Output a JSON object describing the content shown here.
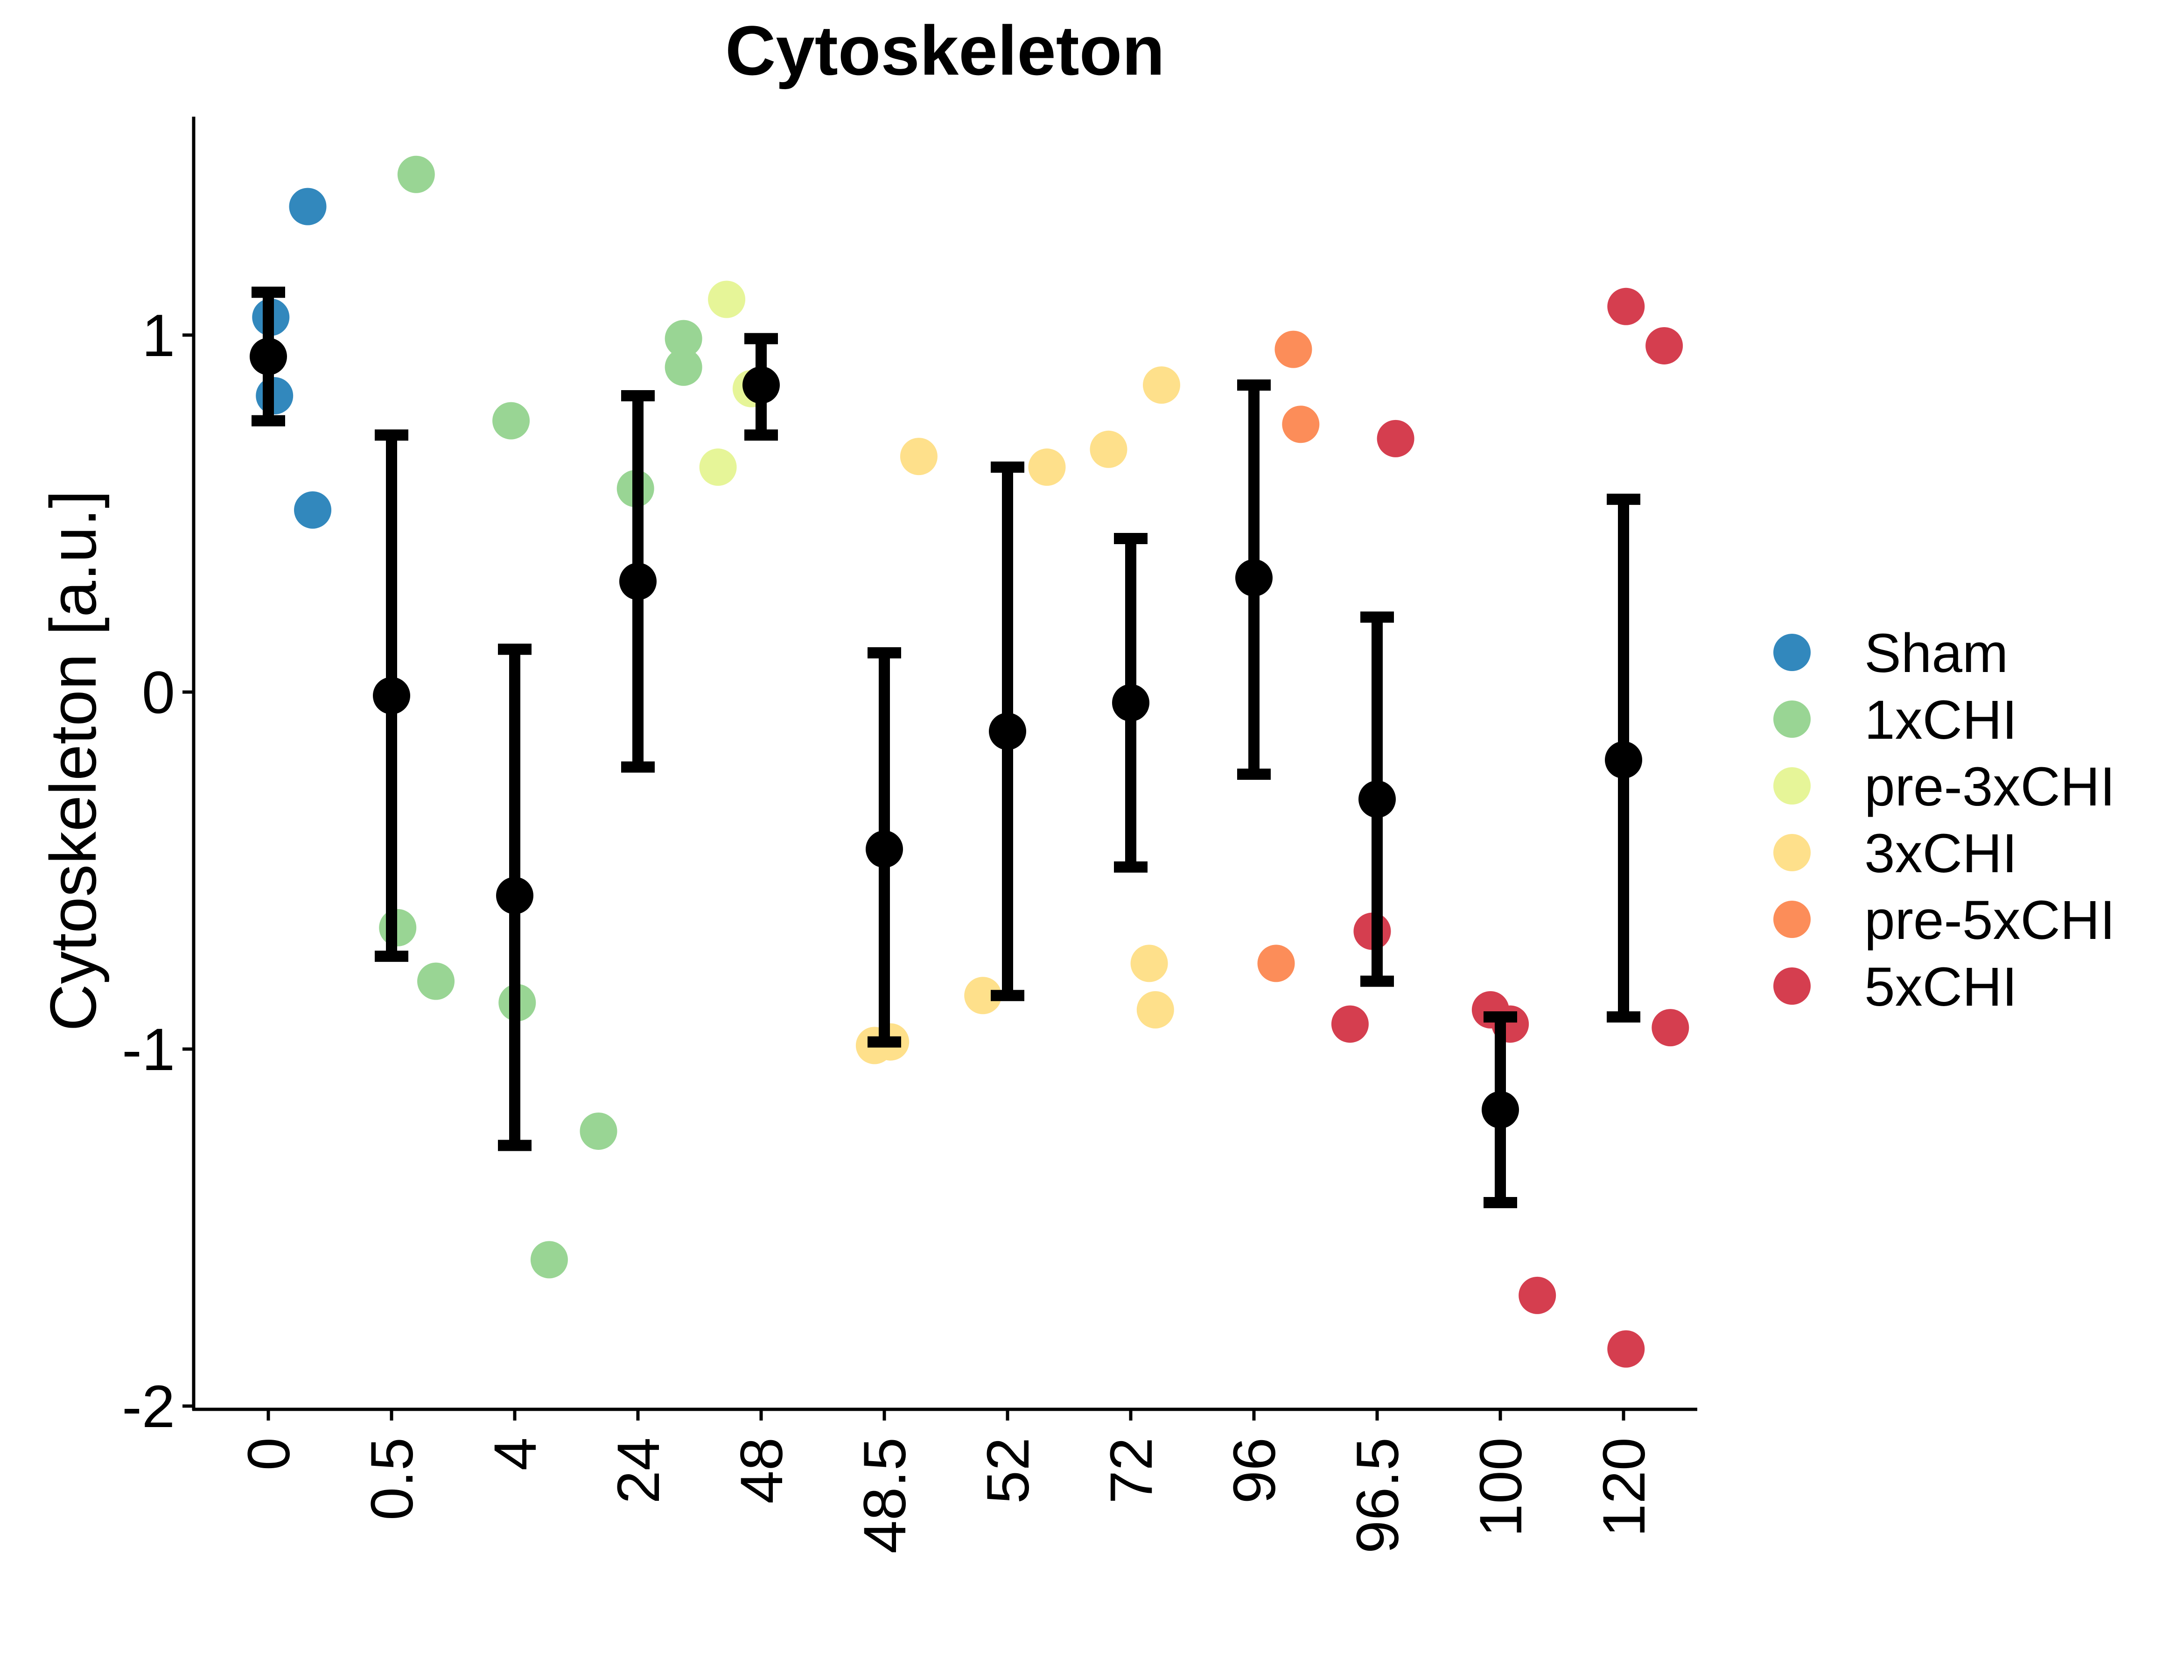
{
  "chart_data": {
    "type": "scatter",
    "title": "Cytoskeleton",
    "xlabel": "",
    "ylabel": "Cytoskeleton [a.u.]",
    "ylim": [
      -2.0,
      1.62
    ],
    "yticks": [
      -2,
      -1,
      0,
      1
    ],
    "ytick_labels": [
      "-2",
      "-1",
      "0",
      "1"
    ],
    "categories": [
      "0",
      "0.5",
      "4",
      "24",
      "48",
      "48.5",
      "52",
      "72",
      "96",
      "96.5",
      "100",
      "120"
    ],
    "legend_position": "right",
    "grid": false,
    "groups": [
      {
        "name": "Sham",
        "color": "#3288bd"
      },
      {
        "name": "1xCHI",
        "color": "#99d594"
      },
      {
        "name": "pre-3xCHI",
        "color": "#e6f598"
      },
      {
        "name": "3xCHI",
        "color": "#fee08b"
      },
      {
        "name": "pre-5xCHI",
        "color": "#fc8d59"
      },
      {
        "name": "5xCHI",
        "color": "#d53e4f"
      }
    ],
    "points": [
      {
        "category": "0",
        "offset": 0.32,
        "y": 1.36,
        "group": "Sham"
      },
      {
        "category": "0",
        "offset": 0.02,
        "y": 1.05,
        "group": "Sham"
      },
      {
        "category": "0",
        "offset": 0.05,
        "y": 0.83,
        "group": "Sham"
      },
      {
        "category": "0",
        "offset": 0.36,
        "y": 0.51,
        "group": "Sham"
      },
      {
        "category": "0.5",
        "offset": 0.2,
        "y": 1.45,
        "group": "1xCHI"
      },
      {
        "category": "0.5",
        "offset": 0.05,
        "y": -0.66,
        "group": "1xCHI"
      },
      {
        "category": "0.5",
        "offset": 0.36,
        "y": -0.81,
        "group": "1xCHI"
      },
      {
        "category": "4",
        "offset": -0.03,
        "y": 0.76,
        "group": "1xCHI"
      },
      {
        "category": "4",
        "offset": 0.02,
        "y": -0.87,
        "group": "1xCHI"
      },
      {
        "category": "4",
        "offset": 0.68,
        "y": -1.23,
        "group": "1xCHI"
      },
      {
        "category": "4",
        "offset": 0.28,
        "y": -1.59,
        "group": "1xCHI"
      },
      {
        "category": "24",
        "offset": -0.02,
        "y": 0.57,
        "group": "1xCHI"
      },
      {
        "category": "24",
        "offset": 0.37,
        "y": 0.99,
        "group": "1xCHI"
      },
      {
        "category": "24",
        "offset": 0.37,
        "y": 0.91,
        "group": "1xCHI"
      },
      {
        "category": "24",
        "offset": 0.72,
        "y": 1.1,
        "group": "pre-3xCHI"
      },
      {
        "category": "24",
        "offset": 0.65,
        "y": 0.63,
        "group": "pre-3xCHI"
      },
      {
        "category": "48",
        "offset": -0.08,
        "y": 0.85,
        "group": "pre-3xCHI"
      },
      {
        "category": "48.5",
        "offset": -0.08,
        "y": -0.99,
        "group": "3xCHI"
      },
      {
        "category": "48.5",
        "offset": 0.05,
        "y": -0.98,
        "group": "3xCHI"
      },
      {
        "category": "48.5",
        "offset": 0.28,
        "y": 0.66,
        "group": "3xCHI"
      },
      {
        "category": "48.5",
        "offset": 0.8,
        "y": -0.85,
        "group": "3xCHI"
      },
      {
        "category": "52",
        "offset": 0.32,
        "y": 0.63,
        "group": "3xCHI"
      },
      {
        "category": "52",
        "offset": 0.82,
        "y": 0.68,
        "group": "3xCHI"
      },
      {
        "category": "72",
        "offset": 0.25,
        "y": 0.86,
        "group": "3xCHI"
      },
      {
        "category": "72",
        "offset": 0.15,
        "y": -0.76,
        "group": "3xCHI"
      },
      {
        "category": "72",
        "offset": 0.2,
        "y": -0.89,
        "group": "3xCHI"
      },
      {
        "category": "96",
        "offset": 0.32,
        "y": 0.96,
        "group": "pre-5xCHI"
      },
      {
        "category": "96",
        "offset": 0.38,
        "y": 0.75,
        "group": "pre-5xCHI"
      },
      {
        "category": "96",
        "offset": 0.18,
        "y": -0.76,
        "group": "pre-5xCHI"
      },
      {
        "category": "96.5",
        "offset": 0.15,
        "y": 0.71,
        "group": "5xCHI"
      },
      {
        "category": "96.5",
        "offset": -0.04,
        "y": -0.67,
        "group": "5xCHI"
      },
      {
        "category": "96.5",
        "offset": -0.22,
        "y": -0.93,
        "group": "5xCHI"
      },
      {
        "category": "100",
        "offset": -0.08,
        "y": -0.89,
        "group": "5xCHI"
      },
      {
        "category": "100",
        "offset": 0.08,
        "y": -0.93,
        "group": "5xCHI"
      },
      {
        "category": "100",
        "offset": 0.3,
        "y": -1.69,
        "group": "5xCHI"
      },
      {
        "category": "120",
        "offset": 0.02,
        "y": 1.08,
        "group": "5xCHI"
      },
      {
        "category": "120",
        "offset": 0.33,
        "y": 0.97,
        "group": "5xCHI"
      },
      {
        "category": "120",
        "offset": 0.38,
        "y": -0.94,
        "group": "5xCHI"
      },
      {
        "category": "120",
        "offset": 0.02,
        "y": -1.84,
        "group": "5xCHI"
      }
    ],
    "summary": [
      {
        "category": "0",
        "mean": 0.94,
        "lower": 0.76,
        "upper": 1.12
      },
      {
        "category": "0.5",
        "mean": -0.01,
        "lower": -0.74,
        "upper": 0.72
      },
      {
        "category": "4",
        "mean": -0.57,
        "lower": -1.27,
        "upper": 0.12
      },
      {
        "category": "24",
        "mean": 0.31,
        "lower": -0.21,
        "upper": 0.83
      },
      {
        "category": "48",
        "mean": 0.86,
        "lower": 0.72,
        "upper": 0.99
      },
      {
        "category": "48.5",
        "mean": -0.44,
        "lower": -0.98,
        "upper": 0.11
      },
      {
        "category": "52",
        "mean": -0.11,
        "lower": -0.85,
        "upper": 0.63
      },
      {
        "category": "72",
        "mean": -0.03,
        "lower": -0.49,
        "upper": 0.43
      },
      {
        "category": "96",
        "mean": 0.32,
        "lower": -0.23,
        "upper": 0.86
      },
      {
        "category": "96.5",
        "mean": -0.3,
        "lower": -0.81,
        "upper": 0.21
      },
      {
        "category": "100",
        "mean": -1.17,
        "lower": -1.43,
        "upper": -0.91
      },
      {
        "category": "120",
        "mean": -0.19,
        "lower": -0.91,
        "upper": 0.54
      }
    ]
  }
}
